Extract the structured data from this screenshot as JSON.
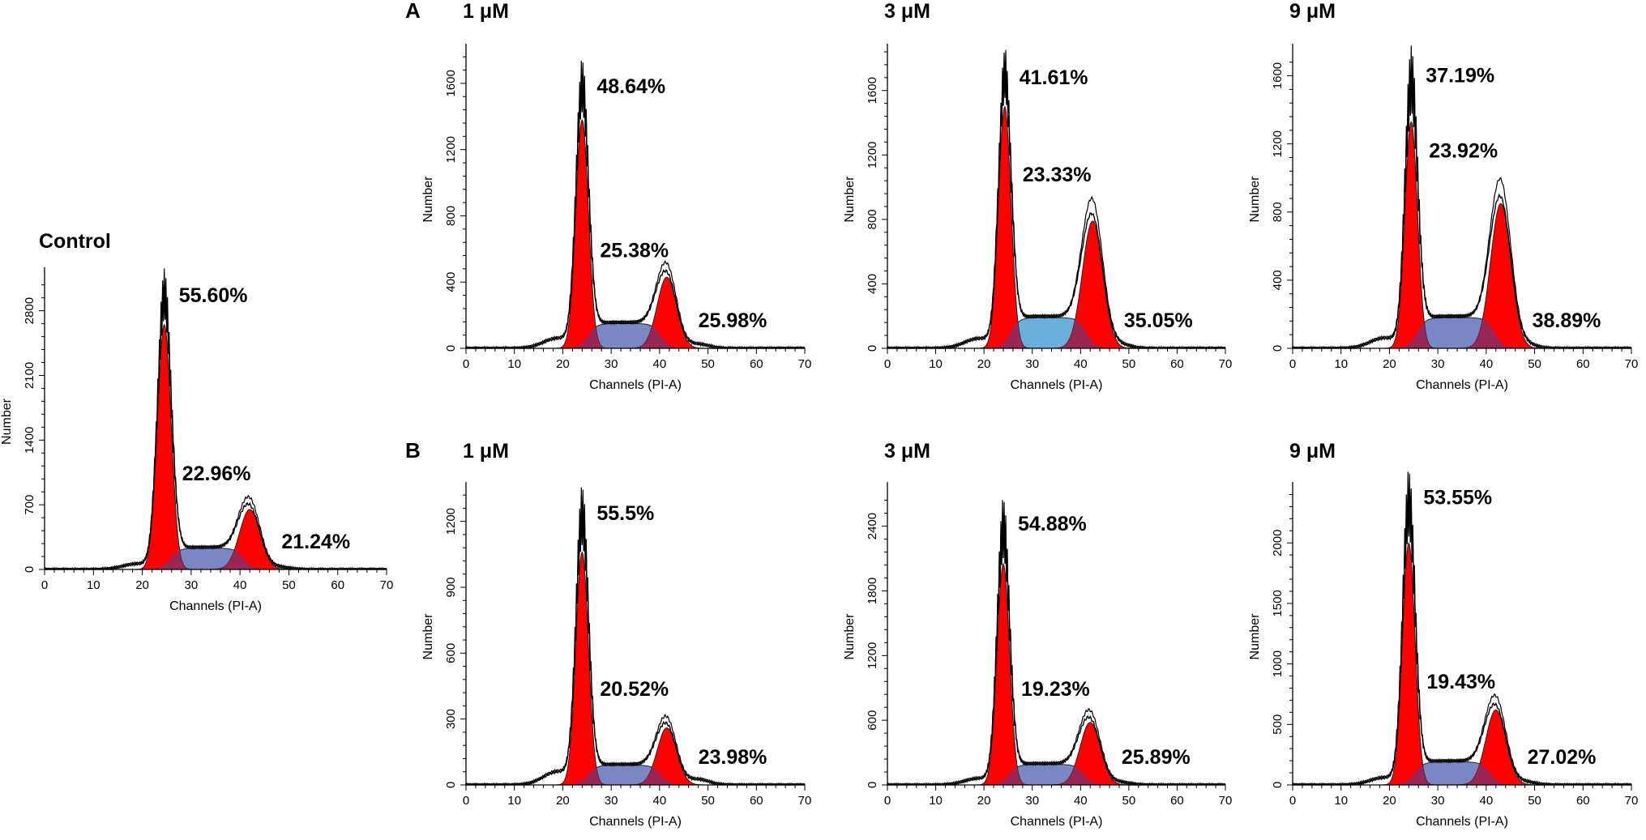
{
  "figure": {
    "section_labels": {
      "A": "A",
      "B": "B"
    },
    "colors": {
      "g1_fill": "#ff0000",
      "g2m_fill": "#ff0000",
      "s_phase_fill": "#7b86c4",
      "overlap_fill": "#8a2b63",
      "s_phase_light": "#6aaedc",
      "trace": "#000000"
    }
  },
  "chart_data": [
    {
      "id": "control",
      "type": "histogram",
      "title": "Control",
      "xlabel": "Channels (PI-A)",
      "ylabel": "Number",
      "xlim": [
        0,
        70
      ],
      "ylim": [
        0,
        3200
      ],
      "yticks": [
        0,
        700,
        1400,
        2100,
        2800
      ],
      "xticks": [
        0,
        10,
        20,
        30,
        40,
        50,
        60,
        70
      ],
      "g1": {
        "center": 24.5,
        "height": 2650,
        "sigma": 1.4,
        "pct": "55.60%"
      },
      "s": {
        "height": 230,
        "pct": "22.96%"
      },
      "g2m": {
        "center": 42,
        "height": 650,
        "sigma": 2.1,
        "pct": "21.24%"
      },
      "peak": 3000
    },
    {
      "id": "A-1",
      "type": "histogram",
      "title": "1 μM",
      "xlabel": "Channels (PI-A)",
      "ylabel": "Number",
      "xlim": [
        0,
        70
      ],
      "ylim": [
        0,
        1800
      ],
      "yticks": [
        0,
        400,
        800,
        1200,
        1600
      ],
      "xticks": [
        0,
        10,
        20,
        30,
        40,
        50,
        60,
        70
      ],
      "g1": {
        "center": 24,
        "height": 1380,
        "sigma": 1.3,
        "pct": "48.64%"
      },
      "s": {
        "height": 150,
        "pct": "25.38%"
      },
      "g2m": {
        "center": 41.5,
        "height": 430,
        "sigma": 2.0,
        "pct": "25.98%"
      },
      "peak": 1600
    },
    {
      "id": "A-3",
      "type": "histogram",
      "title": "3  μM",
      "xlabel": "Channels (PI-A)",
      "ylabel": "Number",
      "xlim": [
        0,
        70
      ],
      "ylim": [
        0,
        1850
      ],
      "yticks": [
        0,
        400,
        800,
        1200,
        1600
      ],
      "xticks": [
        0,
        10,
        20,
        30,
        40,
        50,
        60,
        70
      ],
      "g1": {
        "center": 24.3,
        "height": 1500,
        "sigma": 1.3,
        "pct": "41.61%"
      },
      "s": {
        "height": 190,
        "pct": "23.33%",
        "light": true
      },
      "g2m": {
        "center": 42.5,
        "height": 790,
        "sigma": 2.1,
        "pct": "35.05%"
      },
      "peak": 1700
    },
    {
      "id": "A-9",
      "type": "histogram",
      "title": "9  μM",
      "xlabel": "Channels (PI-A)",
      "ylabel": "Number",
      "xlim": [
        0,
        70
      ],
      "ylim": [
        0,
        1750
      ],
      "yticks": [
        0,
        400,
        800,
        1200,
        1600
      ],
      "xticks": [
        0,
        10,
        20,
        30,
        40,
        50,
        60,
        70
      ],
      "g1": {
        "center": 24.5,
        "height": 1330,
        "sigma": 1.3,
        "pct": "37.19%"
      },
      "s": {
        "height": 180,
        "pct": "23.92%"
      },
      "g2m": {
        "center": 43,
        "height": 850,
        "sigma": 2.1,
        "pct": "38.89%"
      },
      "peak": 1620
    },
    {
      "id": "B-1",
      "type": "histogram",
      "title": "1 μM",
      "xlabel": "Channels (PI-A)",
      "ylabel": "Number",
      "xlim": [
        0,
        70
      ],
      "ylim": [
        0,
        1350
      ],
      "yticks": [
        0,
        300,
        600,
        900,
        1200
      ],
      "xticks": [
        0,
        10,
        20,
        30,
        40,
        50,
        60,
        70
      ],
      "g1": {
        "center": 24,
        "height": 1060,
        "sigma": 1.3,
        "pct": "55.5%"
      },
      "s": {
        "height": 90,
        "pct": "20.52%"
      },
      "g2m": {
        "center": 41.5,
        "height": 260,
        "sigma": 2.0,
        "pct": "23.98%"
      },
      "peak": 1250
    },
    {
      "id": "B-3",
      "type": "histogram",
      "title": "3  μM",
      "xlabel": "Channels (PI-A)",
      "ylabel": "Number",
      "xlim": [
        0,
        70
      ],
      "ylim": [
        0,
        2750
      ],
      "yticks": [
        0,
        600,
        1200,
        1800,
        2400
      ],
      "xticks": [
        0,
        10,
        20,
        30,
        40,
        50,
        60,
        70
      ],
      "g1": {
        "center": 24,
        "height": 2050,
        "sigma": 1.3,
        "pct": "54.88%"
      },
      "s": {
        "height": 190,
        "pct": "19.23%"
      },
      "g2m": {
        "center": 42,
        "height": 580,
        "sigma": 2.1,
        "pct": "25.89%"
      },
      "peak": 2450
    },
    {
      "id": "B-9",
      "type": "histogram",
      "title": "9  μM",
      "xlabel": "Channels (PI-A)",
      "ylabel": "Number",
      "xlim": [
        0,
        70
      ],
      "ylim": [
        0,
        2450
      ],
      "yticks": [
        0,
        500,
        1000,
        1500,
        2000
      ],
      "xticks": [
        0,
        10,
        20,
        30,
        40,
        50,
        60,
        70
      ],
      "g1": {
        "center": 24,
        "height": 2000,
        "sigma": 1.3,
        "pct": "53.55%"
      },
      "s": {
        "height": 190,
        "pct": "19.43%"
      },
      "g2m": {
        "center": 42,
        "height": 620,
        "sigma": 2.1,
        "pct": "27.02%"
      },
      "peak": 2400
    }
  ]
}
